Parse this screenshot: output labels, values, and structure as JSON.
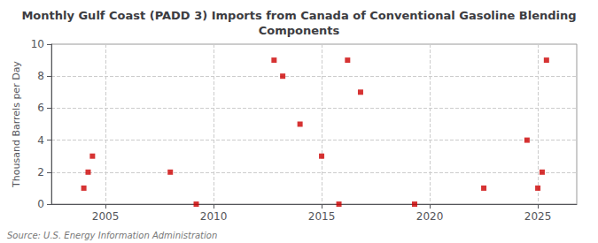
{
  "chart_data": {
    "type": "scatter",
    "title": "Monthly Gulf Coast (PADD 3) Imports from Canada of Conventional Gasoline Blending\nComponents",
    "ylabel": "Thousand Barrels per Day",
    "annotations": [
      "Source: U.S. Energy Information Administration"
    ],
    "x": [
      2004.0,
      2004.2,
      2004.4,
      2008.0,
      2009.2,
      2012.8,
      2013.2,
      2014.0,
      2015.8,
      2016.2,
      2016.8,
      2015.0,
      2019.3,
      2022.5,
      2024.5,
      2025.0,
      2025.2,
      2025.4
    ],
    "values": [
      1,
      2,
      3,
      2,
      0,
      9,
      8,
      5,
      0,
      9,
      7,
      3,
      0,
      1,
      4,
      1,
      2,
      9
    ],
    "color": "#cc0000",
    "marker": "square",
    "xlim": [
      2002.5,
      2026.8
    ],
    "xticks": [
      2005,
      2010,
      2015,
      2020,
      2025
    ],
    "ylim": [
      0,
      10
    ],
    "yticks": [
      0,
      2,
      4,
      6,
      8,
      10
    ],
    "grid": true
  }
}
